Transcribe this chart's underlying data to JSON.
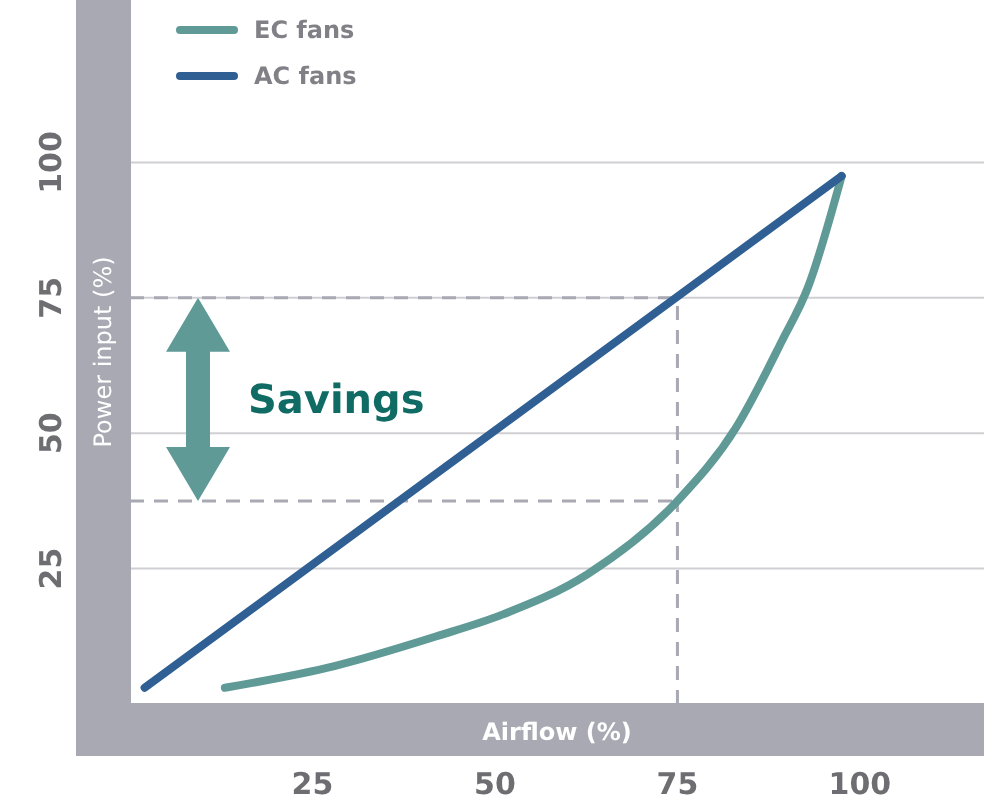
{
  "chart_data": {
    "type": "line",
    "xlabel": "Airflow (%)",
    "ylabel": "Power input (%)",
    "xlim": [
      0,
      117
    ],
    "xticks": [
      25,
      50,
      75,
      100
    ],
    "ylim": [
      0,
      130
    ],
    "yticks": [
      25,
      50,
      75,
      100
    ],
    "grid": "y",
    "legend": "top left",
    "marker": "none",
    "line_style": "solid",
    "series": [
      {
        "name": "EC fans",
        "color": "#5f9a97",
        "x": [
          13,
          28,
          42,
          51,
          62.7,
          75,
          83,
          89.3,
          92.9,
          97.5
        ],
        "values": [
          3,
          7,
          12.5,
          16.5,
          24,
          37.5,
          51,
          67,
          77,
          97.5
        ]
      },
      {
        "name": "AC fans",
        "color": "#2f5f93",
        "x": [
          2,
          97.5
        ],
        "values": [
          3,
          97.5
        ]
      }
    ],
    "ref_lines": [
      {
        "axis": "y",
        "value": 75,
        "color": "#a9a9b3",
        "line_style": "dashed"
      },
      {
        "axis": "y",
        "value": 37.5,
        "color": "#a9a9b3",
        "line_style": "dashed"
      },
      {
        "axis": "x",
        "value": 75,
        "color": "#a9a9b3",
        "line_style": "dashed"
      }
    ],
    "annotations": [
      "Savings"
    ]
  }
}
